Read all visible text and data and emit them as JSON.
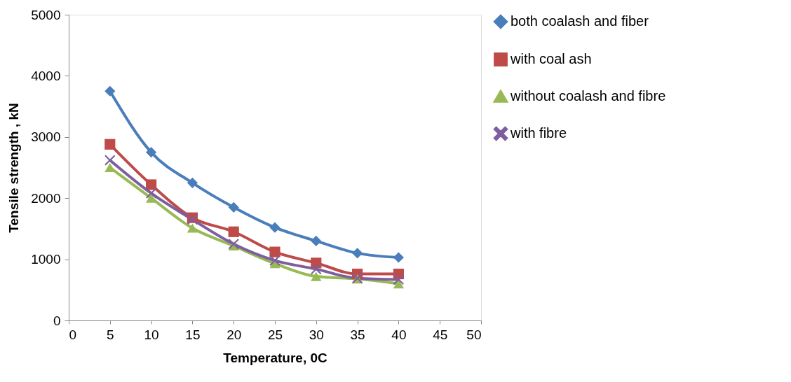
{
  "chart_data": {
    "type": "line",
    "xlabel": "Temperature, 0C",
    "ylabel": "Tensile strength , kN",
    "x": [
      5,
      10,
      15,
      20,
      25,
      30,
      35,
      40
    ],
    "series": [
      {
        "name": "both coalash and fiber",
        "color": "#4a7ebb",
        "marker": "diamond",
        "values": [
          3750,
          2750,
          2250,
          1850,
          1520,
          1300,
          1100,
          1030
        ]
      },
      {
        "name": "with coal ash",
        "color": "#be4b48",
        "marker": "square",
        "values": [
          2880,
          2220,
          1680,
          1450,
          1120,
          940,
          760,
          760
        ]
      },
      {
        "name": "without coalash and fibre",
        "color": "#98b954",
        "marker": "triangle",
        "values": [
          2500,
          2000,
          1510,
          1220,
          930,
          720,
          680,
          600
        ]
      },
      {
        "name": "with fibre",
        "color": "#7d5fa0",
        "marker": "cross",
        "values": [
          2620,
          2080,
          1650,
          1250,
          980,
          840,
          690,
          670
        ]
      }
    ],
    "xlim": [
      0,
      50
    ],
    "xticks": [
      0,
      5,
      10,
      15,
      20,
      25,
      30,
      35,
      40,
      45,
      50
    ],
    "ylim": [
      0,
      5000
    ],
    "yticks": [
      0,
      1000,
      2000,
      3000,
      4000,
      5000
    ],
    "grid": false,
    "legend": "right",
    "line_style": "solid"
  }
}
